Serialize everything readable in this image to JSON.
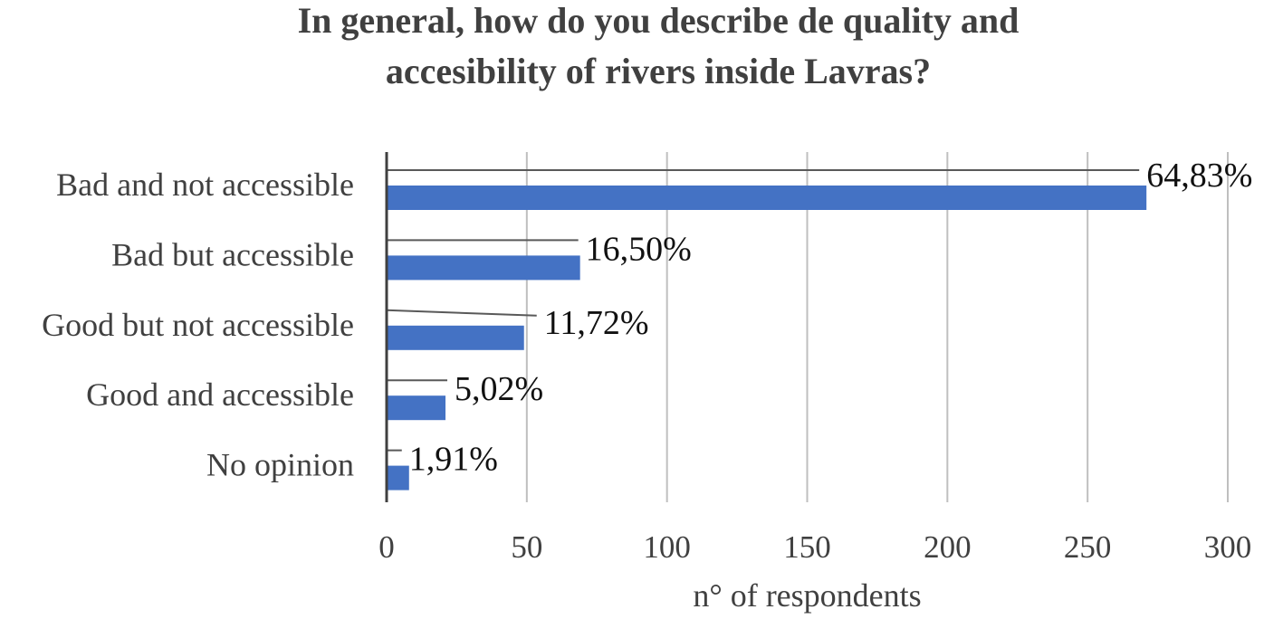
{
  "chart_data": {
    "type": "bar",
    "orientation": "horizontal",
    "title_lines": [
      "In general, how do you describe de quality and",
      "accesibility of rivers inside Lavras?"
    ],
    "xlabel": "n° of respondents",
    "ylabel": "",
    "xlim": [
      0,
      300
    ],
    "x_ticks": [
      "0",
      "50",
      "100",
      "150",
      "200",
      "250",
      "300"
    ],
    "categories": [
      "Bad and not accessible",
      "Bad but accessible",
      "Good but not accessible",
      "Good and accessible",
      "No opinion"
    ],
    "values": [
      271,
      69,
      49,
      21,
      8
    ],
    "data_labels": [
      "64,83%",
      "16,50%",
      "11,72%",
      "5,02%",
      "1,91%"
    ],
    "grid": "vertical",
    "legend": "none",
    "bar_color": "#4472c4"
  }
}
